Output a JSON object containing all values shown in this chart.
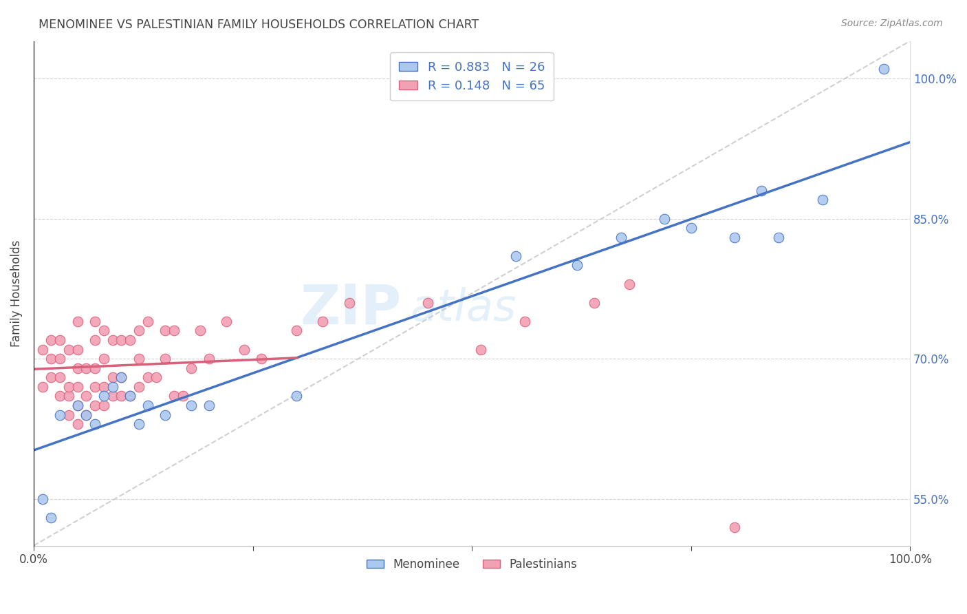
{
  "title": "MENOMINEE VS PALESTINIAN FAMILY HOUSEHOLDS CORRELATION CHART",
  "source": "Source: ZipAtlas.com",
  "ylabel": "Family Households",
  "xlim": [
    0,
    1.0
  ],
  "ylim": [
    0.5,
    1.04
  ],
  "ytick_vals": [
    0.55,
    0.7,
    0.85,
    1.0
  ],
  "ytick_labels": [
    "55.0%",
    "70.0%",
    "85.0%",
    "100.0%"
  ],
  "xtick_vals": [
    0.0,
    0.25,
    0.5,
    0.75,
    1.0
  ],
  "xtick_labels": [
    "0.0%",
    "",
    "",
    "",
    "100.0%"
  ],
  "menominee_R": 0.883,
  "menominee_N": 26,
  "palestinian_R": 0.148,
  "palestinian_N": 65,
  "menominee_color": "#adc8ee",
  "menominee_line_color": "#4472c4",
  "palestinian_color": "#f2a0b4",
  "palestinian_line_color": "#d9607a",
  "diagonal_color": "#c8c8c8",
  "watermark_text": "ZIPatlas",
  "menominee_x": [
    0.01,
    0.02,
    0.03,
    0.05,
    0.06,
    0.07,
    0.08,
    0.09,
    0.1,
    0.11,
    0.12,
    0.13,
    0.15,
    0.18,
    0.2,
    0.3,
    0.55,
    0.62,
    0.67,
    0.72,
    0.75,
    0.8,
    0.83,
    0.85,
    0.9,
    0.97
  ],
  "menominee_y": [
    0.55,
    0.53,
    0.64,
    0.65,
    0.64,
    0.63,
    0.66,
    0.67,
    0.68,
    0.66,
    0.63,
    0.65,
    0.64,
    0.65,
    0.65,
    0.66,
    0.81,
    0.8,
    0.83,
    0.85,
    0.84,
    0.83,
    0.88,
    0.83,
    0.87,
    1.01
  ],
  "palestinian_x": [
    0.01,
    0.01,
    0.02,
    0.02,
    0.02,
    0.03,
    0.03,
    0.03,
    0.03,
    0.04,
    0.04,
    0.04,
    0.04,
    0.05,
    0.05,
    0.05,
    0.05,
    0.05,
    0.05,
    0.06,
    0.06,
    0.06,
    0.07,
    0.07,
    0.07,
    0.07,
    0.07,
    0.08,
    0.08,
    0.08,
    0.08,
    0.09,
    0.09,
    0.09,
    0.1,
    0.1,
    0.1,
    0.11,
    0.11,
    0.12,
    0.12,
    0.12,
    0.13,
    0.13,
    0.14,
    0.15,
    0.15,
    0.16,
    0.16,
    0.17,
    0.18,
    0.19,
    0.2,
    0.22,
    0.24,
    0.26,
    0.3,
    0.33,
    0.36,
    0.45,
    0.51,
    0.56,
    0.64,
    0.68,
    0.8
  ],
  "palestinian_y": [
    0.67,
    0.71,
    0.68,
    0.7,
    0.72,
    0.66,
    0.68,
    0.7,
    0.72,
    0.64,
    0.66,
    0.67,
    0.71,
    0.63,
    0.65,
    0.67,
    0.69,
    0.71,
    0.74,
    0.64,
    0.66,
    0.69,
    0.65,
    0.67,
    0.69,
    0.72,
    0.74,
    0.65,
    0.67,
    0.7,
    0.73,
    0.66,
    0.68,
    0.72,
    0.66,
    0.68,
    0.72,
    0.66,
    0.72,
    0.67,
    0.7,
    0.73,
    0.68,
    0.74,
    0.68,
    0.7,
    0.73,
    0.66,
    0.73,
    0.66,
    0.69,
    0.73,
    0.7,
    0.74,
    0.71,
    0.7,
    0.73,
    0.74,
    0.76,
    0.76,
    0.71,
    0.74,
    0.76,
    0.78,
    0.52
  ]
}
